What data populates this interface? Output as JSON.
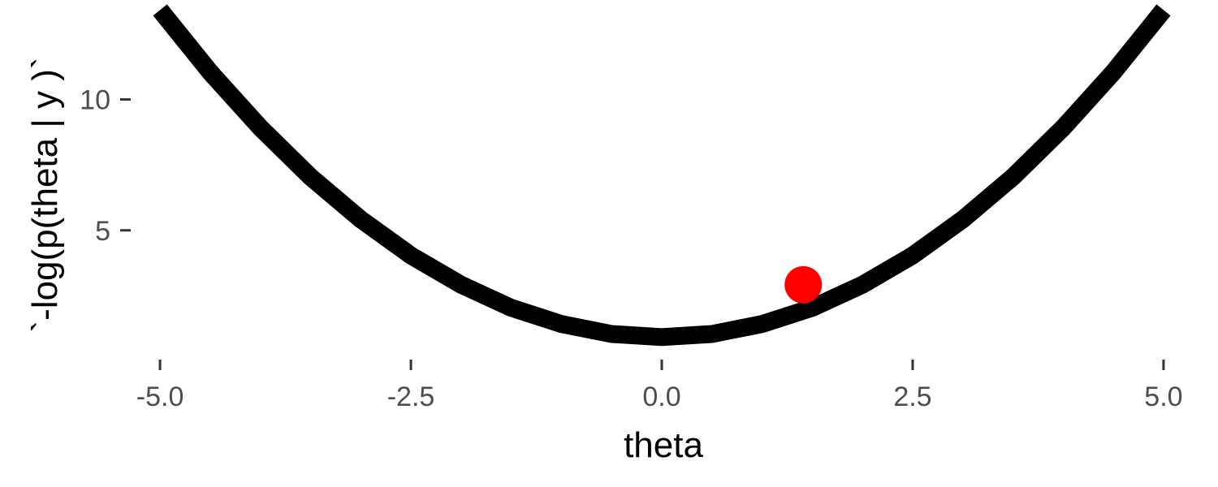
{
  "chart_data": {
    "type": "line",
    "title": "",
    "xlabel": "theta",
    "ylabel": "`-log(p(theta | y )`",
    "xlim": [
      -5.3,
      5.3
    ],
    "ylim": [
      0.0,
      13.8
    ],
    "x_ticks": [
      -5.0,
      -2.5,
      0.0,
      2.5,
      5.0
    ],
    "x_tick_labels": [
      "-5.0",
      "-2.5",
      "0.0",
      "2.5",
      "5.0"
    ],
    "y_ticks": [
      5,
      10
    ],
    "y_tick_labels": [
      "5",
      "10"
    ],
    "grid": false,
    "series": [
      {
        "type": "line",
        "color": "#000000",
        "x": [
          -5.0,
          -4.5,
          -4.0,
          -3.5,
          -3.0,
          -2.5,
          -2.0,
          -1.5,
          -1.0,
          -0.5,
          0.0,
          0.5,
          1.0,
          1.5,
          2.0,
          2.5,
          3.0,
          3.5,
          4.0,
          4.5,
          5.0
        ],
        "y": [
          13.42,
          11.04,
          8.92,
          7.04,
          5.42,
          4.04,
          2.92,
          2.04,
          1.42,
          1.04,
          0.92,
          1.04,
          1.42,
          2.04,
          2.92,
          4.04,
          5.42,
          7.04,
          8.92,
          11.04,
          13.42
        ]
      },
      {
        "type": "point",
        "color": "#ff0000",
        "x": [
          1.41
        ],
        "y": [
          2.92
        ]
      }
    ]
  }
}
